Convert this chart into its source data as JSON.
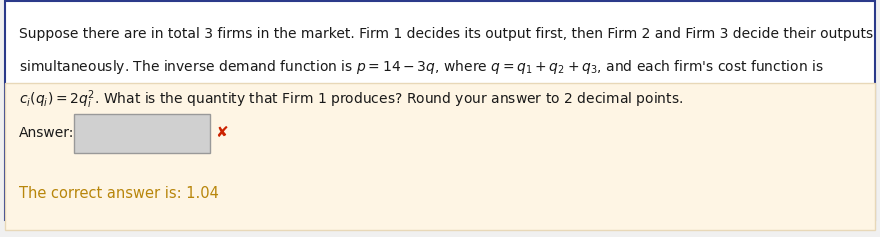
{
  "main_box_bg": "#ffffff",
  "main_box_border": "#2b3a8a",
  "answer_box_bg": "#d0d0d0",
  "answer_box_border": "#999999",
  "bottom_box_bg": "#fef5e4",
  "bottom_box_border": "#e8d8b8",
  "q_line1": "Suppose there are in total 3 firms in the market. Firm 1 decides its output first, then Firm 2 and Firm 3 decide their outputs",
  "q_line2_plain1": "simultaneously. The inverse demand function is ",
  "q_line2_math1": "$p = 14 - 3q$",
  "q_line2_plain2": ", where ",
  "q_line2_math2": "$q = q_1 + q_2 + q_3$",
  "q_line2_plain3": ", and each firm's cost function is",
  "q_line3_math1": "$c_i(q_i) = 2q_i^2$",
  "q_line3_plain1": ". What is the quantity that Firm 1 produces? Round your answer to 2 decimal points.",
  "answer_label": "Answer:",
  "correct_answer_text": "The correct answer is: 1.04",
  "correct_answer_color": "#b8860b",
  "text_color": "#1a1a1a",
  "fontsize_question": 10.0,
  "fontsize_answer": 10.0,
  "fontsize_correct": 10.5
}
